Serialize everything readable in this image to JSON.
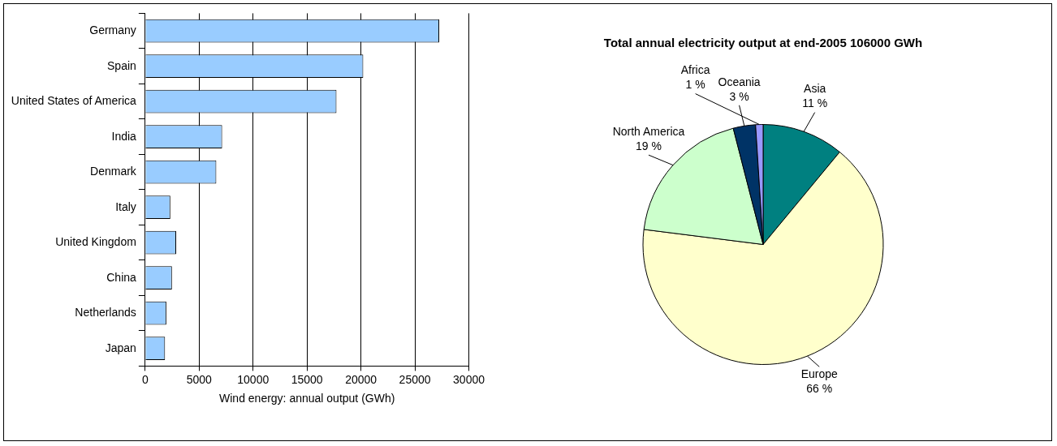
{
  "chart_data": [
    {
      "type": "bar",
      "orientation": "horizontal",
      "xlabel": "Wind energy: annual output (GWh)",
      "categories": [
        "Germany",
        "Spain",
        "United States of America",
        "India",
        "Denmark",
        "Italy",
        "United Kingdom",
        "China",
        "Netherlands",
        "Japan"
      ],
      "values": [
        27250,
        20210,
        17730,
        7130,
        6590,
        2330,
        2870,
        2480,
        1960,
        1840
      ],
      "color": "#99ccff",
      "xlim": [
        0,
        30000
      ],
      "xticks": [
        0,
        5000,
        10000,
        15000,
        20000,
        25000,
        30000
      ],
      "grid": "x",
      "legend": false
    },
    {
      "type": "pie",
      "title": "Total annual electricity output at end-2005 106000 GWh",
      "categories": [
        "Asia",
        "Europe",
        "North America",
        "Oceania",
        "Africa"
      ],
      "values": [
        11,
        66,
        19,
        3,
        1
      ],
      "value_labels": [
        "11 %",
        "66 %",
        "19 %",
        "3 %",
        "1 %"
      ],
      "colors": [
        "#008080",
        "#ffffcc",
        "#ccffcc",
        "#003366",
        "#9999ff"
      ],
      "legend": false
    }
  ]
}
